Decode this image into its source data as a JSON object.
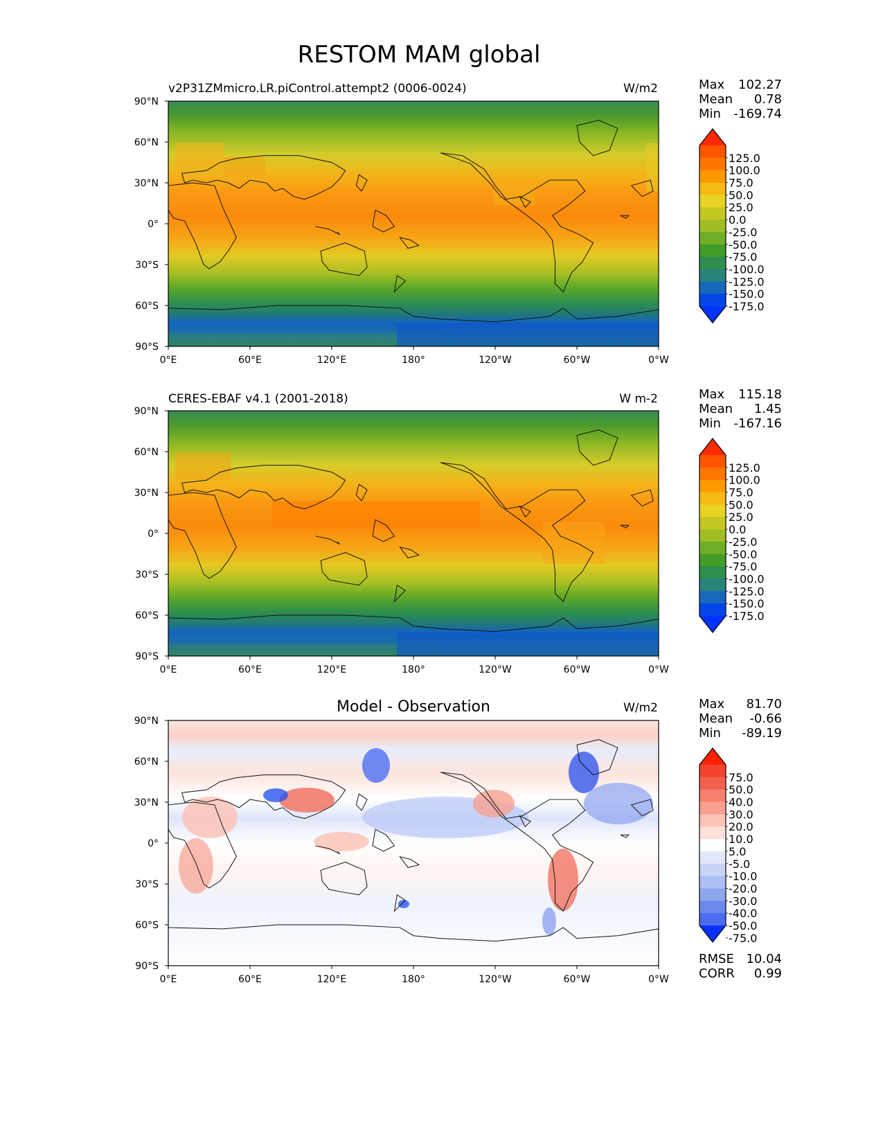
{
  "figure_title": "RESTOM MAM global",
  "x_ticks": [
    "0°E",
    "60°E",
    "120°E",
    "180°",
    "120°W",
    "60°W",
    "0°W"
  ],
  "y_ticks": [
    "90°N",
    "60°N",
    "30°N",
    "0°",
    "30°S",
    "60°S",
    "90°S"
  ],
  "chart_data": [
    {
      "type": "heatmap",
      "title": "",
      "subtitle": "v2P31ZMmicro.LR.piControl.attempt2 (0006-0024)",
      "units": "W/m2",
      "xlim": [
        0,
        360
      ],
      "ylim": [
        -90,
        90
      ],
      "stats": [
        [
          "Max",
          "102.27"
        ],
        [
          "Mean",
          "0.78"
        ],
        [
          "Min",
          "-169.74"
        ]
      ],
      "colorbar_levels": [
        "125.0",
        "100.0",
        "75.0",
        "50.0",
        "25.0",
        "0.0",
        "-25.0",
        "-50.0",
        "-75.0",
        "-100.0",
        "-125.0",
        "-150.0",
        "-175.0"
      ],
      "colorbar_colors": [
        "#ff2a00",
        "#ff5500",
        "#ff7700",
        "#ff9900",
        "#f5bb11",
        "#e8d325",
        "#c4c721",
        "#9fbe24",
        "#6fae26",
        "#419d27",
        "#2f8d4e",
        "#28837a",
        "#1668bc",
        "#0445e8",
        "#0033ff"
      ]
    },
    {
      "type": "heatmap",
      "title": "",
      "subtitle": "CERES-EBAF v4.1 (2001-2018)",
      "units": "W m-2",
      "xlim": [
        0,
        360
      ],
      "ylim": [
        -90,
        90
      ],
      "stats": [
        [
          "Max",
          "115.18"
        ],
        [
          "Mean",
          "1.45"
        ],
        [
          "Min",
          "-167.16"
        ]
      ],
      "colorbar_levels": [
        "125.0",
        "100.0",
        "75.0",
        "50.0",
        "25.0",
        "0.0",
        "-25.0",
        "-50.0",
        "-75.0",
        "-100.0",
        "-125.0",
        "-150.0",
        "-175.0"
      ],
      "colorbar_colors": [
        "#ff2a00",
        "#ff5500",
        "#ff7700",
        "#ff9900",
        "#f5bb11",
        "#e8d325",
        "#c4c721",
        "#9fbe24",
        "#6fae26",
        "#419d27",
        "#2f8d4e",
        "#28837a",
        "#1668bc",
        "#0445e8",
        "#0033ff"
      ]
    },
    {
      "type": "heatmap",
      "title": "Model - Observation",
      "subtitle": "",
      "units": "W/m2",
      "xlim": [
        0,
        360
      ],
      "ylim": [
        -90,
        90
      ],
      "stats": [
        [
          "Max",
          "81.70"
        ],
        [
          "Mean",
          "-0.66"
        ],
        [
          "Min",
          "-89.19"
        ]
      ],
      "extra_stats": [
        [
          "RMSE",
          "10.04"
        ],
        [
          "CORR",
          "0.99"
        ]
      ],
      "colorbar_levels": [
        "75.0",
        "50.0",
        "40.0",
        "30.0",
        "20.0",
        "10.0",
        "5.0",
        "-5.0",
        "-10.0",
        "-20.0",
        "-30.0",
        "-40.0",
        "-50.0",
        "-75.0"
      ],
      "colorbar_colors": [
        "#ff2200",
        "#f2442f",
        "#f4604e",
        "#f7806e",
        "#f9a090",
        "#fbc2b6",
        "#fde0da",
        "#ffffff",
        "#e2e8fa",
        "#c8d3f7",
        "#adbff3",
        "#8fa6ef",
        "#6c89ec",
        "#4a6cf0",
        "#0b2fff"
      ]
    }
  ]
}
